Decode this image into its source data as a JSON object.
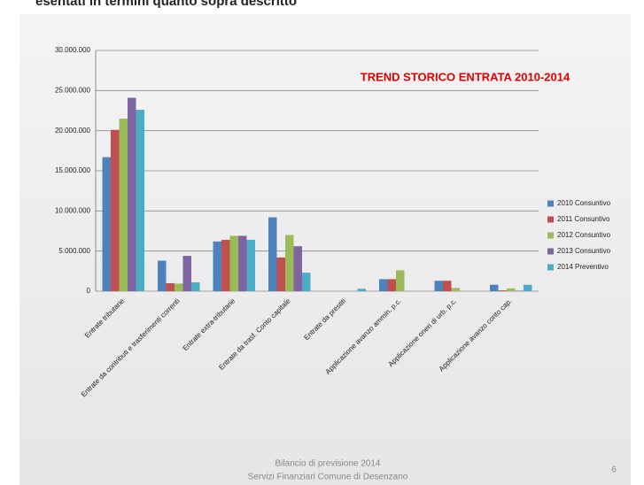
{
  "slide_top_text": "esentati in termini quanto sopra descritto",
  "chart_data": {
    "type": "bar",
    "title": "TREND STORICO ENTRATA 2010-2014",
    "categories": [
      "Entrate tributarie",
      "Entrate da contributi e trasferimenti correnti",
      "Entrate extra-tributarie",
      "Entrate da trasf. Conto capitale",
      "Entrate da prestiti",
      "Applicazione avanzo ammin. p.c.",
      "Applicazione oneri di urb. p.c.",
      "Applicazione avanzo conto cap."
    ],
    "series": [
      {
        "name": "2010 Consuntivo",
        "color": "#4f81bd",
        "values": [
          16700000,
          3800000,
          6200000,
          9200000,
          0,
          1500000,
          1300000,
          800000
        ]
      },
      {
        "name": "2011 Consuntivo",
        "color": "#c0504d",
        "values": [
          20100000,
          1000000,
          6400000,
          4200000,
          0,
          1500000,
          1300000,
          100000
        ]
      },
      {
        "name": "2012 Consuntivo",
        "color": "#9bbb59",
        "values": [
          21500000,
          950000,
          6900000,
          7000000,
          0,
          2600000,
          400000,
          350000
        ]
      },
      {
        "name": "2013 Consuntivo",
        "color": "#8064a2",
        "values": [
          24100000,
          4400000,
          6900000,
          5600000,
          0,
          0,
          0,
          50000
        ]
      },
      {
        "name": "2014 Preventivo",
        "color": "#4bacc6",
        "values": [
          22600000,
          1100000,
          6400000,
          2300000,
          300000,
          0,
          0,
          800000
        ]
      }
    ],
    "ylim": [
      0,
      30000000
    ],
    "yticks": [
      0,
      {
        "value": 5000000,
        "label": "5.000.000"
      },
      {
        "value": 10000000,
        "label": "10.000.000"
      },
      {
        "value": 15000000,
        "label": "15.000.000"
      },
      {
        "value": 20000000,
        "label": "20.000.000"
      },
      {
        "value": 25000000,
        "label": "25.000.000"
      },
      {
        "value": 30000000,
        "label": "30.000.000"
      }
    ],
    "grid": true,
    "legend": "right"
  },
  "footer": {
    "line1": "Bilancio di previsione 2014",
    "line2": "Servizi Finanziari Comune di Desenzano",
    "page": "6"
  }
}
